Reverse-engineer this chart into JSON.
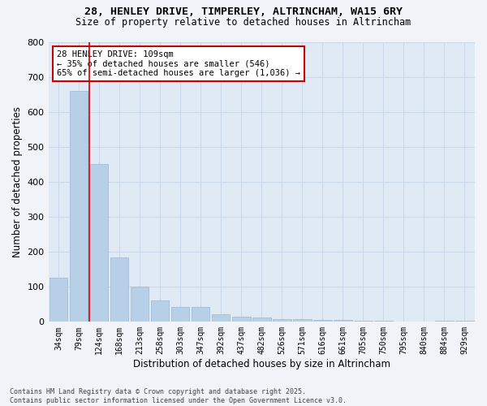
{
  "title_line1": "28, HENLEY DRIVE, TIMPERLEY, ALTRINCHAM, WA15 6RY",
  "title_line2": "Size of property relative to detached houses in Altrincham",
  "xlabel": "Distribution of detached houses by size in Altrincham",
  "ylabel": "Number of detached properties",
  "categories": [
    "34sqm",
    "79sqm",
    "124sqm",
    "168sqm",
    "213sqm",
    "258sqm",
    "303sqm",
    "347sqm",
    "392sqm",
    "437sqm",
    "482sqm",
    "526sqm",
    "571sqm",
    "616sqm",
    "661sqm",
    "705sqm",
    "750sqm",
    "795sqm",
    "840sqm",
    "884sqm",
    "929sqm"
  ],
  "values": [
    125,
    660,
    450,
    185,
    100,
    62,
    42,
    42,
    22,
    15,
    12,
    8,
    8,
    5,
    5,
    3,
    3,
    0,
    0,
    3,
    3
  ],
  "bar_color": "#b8cfe8",
  "bar_edge_color": "#9ab8d8",
  "grid_color": "#c8d8e8",
  "vline_x": 1.5,
  "vline_color": "#cc0000",
  "annotation_text": "28 HENLEY DRIVE: 109sqm\n← 35% of detached houses are smaller (546)\n65% of semi-detached houses are larger (1,036) →",
  "annotation_box_color": "#cc0000",
  "ylim": [
    0,
    800
  ],
  "yticks": [
    0,
    100,
    200,
    300,
    400,
    500,
    600,
    700,
    800
  ],
  "footer_line1": "Contains HM Land Registry data © Crown copyright and database right 2025.",
  "footer_line2": "Contains public sector information licensed under the Open Government Licence v3.0.",
  "bg_color": "#f0f4f8",
  "plot_bg_color": "#e0eaf5"
}
